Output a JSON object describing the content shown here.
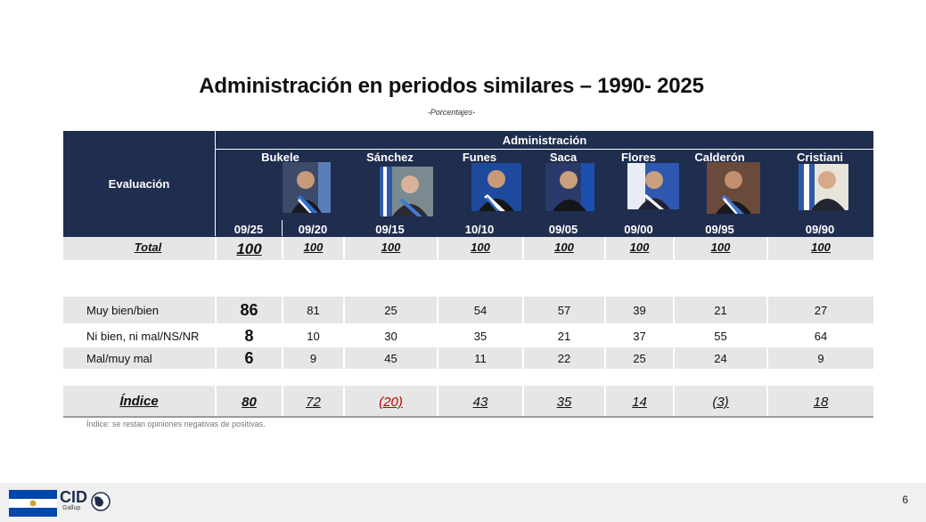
{
  "title": "Administración en periodos similares – 1990- 2025",
  "subtitle": "-Porcentajes-",
  "header": {
    "evaluation_label": "Evaluación",
    "administration_label": "Administración",
    "presidents": [
      {
        "name": "Bukele",
        "dates": [
          "09/25",
          "09/20"
        ]
      },
      {
        "name": "Sánchez",
        "dates": [
          "09/15"
        ]
      },
      {
        "name": "Funes",
        "dates": [
          "10/10"
        ]
      },
      {
        "name": "Saca",
        "dates": [
          "09/05"
        ]
      },
      {
        "name": "Flores",
        "dates": [
          "09/00"
        ]
      },
      {
        "name": "Calderón",
        "dates": [
          "09/95"
        ]
      },
      {
        "name": "Cristiani",
        "dates": [
          "09/90"
        ]
      }
    ]
  },
  "rows": {
    "total": {
      "label": "Total",
      "values": [
        "100",
        "100",
        "100",
        "100",
        "100",
        "100",
        "100",
        "100"
      ]
    },
    "muy_bien": {
      "label": "Muy bien/bien",
      "values": [
        "86",
        "81",
        "25",
        "54",
        "57",
        "39",
        "21",
        "27"
      ]
    },
    "ni_bien": {
      "label": "Ni bien, ni mal/NS/NR",
      "values": [
        "8",
        "10",
        "30",
        "35",
        "21",
        "37",
        "55",
        "64"
      ]
    },
    "mal": {
      "label": "Mal/muy mal",
      "values": [
        "6",
        "9",
        "45",
        "11",
        "22",
        "25",
        "24",
        "9"
      ]
    },
    "indice": {
      "label": "Índice",
      "values": [
        "80",
        "72",
        "(20)",
        "43",
        "35",
        "14",
        "(3)",
        "18"
      ]
    }
  },
  "note": "Índice: se restan opiniones negativas de positivas.",
  "footer": {
    "logo_text": "CID",
    "logo_subtext": "Gallup",
    "page_number": "6",
    "flag_colors": [
      "#0047ab",
      "#ffffff",
      "#0047ab"
    ]
  },
  "colors": {
    "header_bg": "#1f2d4e",
    "row_gray": "#e6e6e6",
    "negative": "#c00000"
  }
}
